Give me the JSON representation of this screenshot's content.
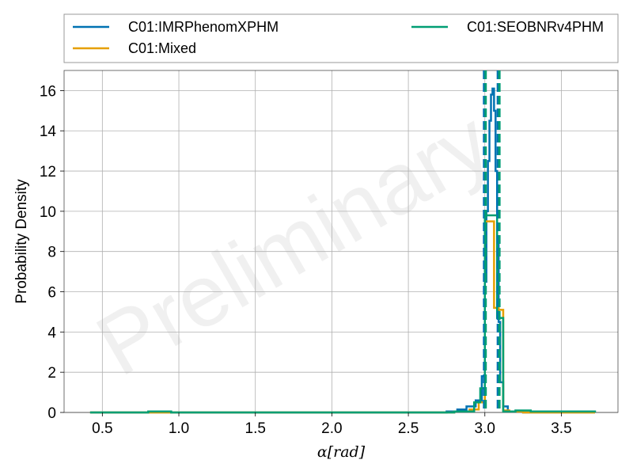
{
  "chart_data": {
    "type": "line",
    "title": "",
    "xlabel": "α[rad]",
    "ylabel": "Probability Density",
    "xlim": [
      0.25,
      3.87
    ],
    "ylim": [
      0,
      17
    ],
    "xticks": [
      0.5,
      1.0,
      1.5,
      2.0,
      2.5,
      3.0,
      3.5
    ],
    "xtick_labels": [
      "0.5",
      "1.0",
      "1.5",
      "2.0",
      "2.5",
      "3.0",
      "3.5"
    ],
    "yticks": [
      0,
      2,
      4,
      6,
      8,
      10,
      12,
      14,
      16
    ],
    "ytick_labels": [
      "0",
      "2",
      "4",
      "6",
      "8",
      "10",
      "12",
      "14",
      "16"
    ],
    "grid": true,
    "legend_position": "top",
    "watermark": "Preliminary",
    "series": [
      {
        "name": "C01:IMRPhenomXPHM",
        "color": "#0072b2",
        "style": "step",
        "x": [
          0.42,
          2.75,
          2.82,
          2.88,
          2.94,
          2.98,
          3.0,
          3.01,
          3.02,
          3.03,
          3.04,
          3.05,
          3.06,
          3.07,
          3.08,
          3.09,
          3.1,
          3.12,
          3.15,
          3.25,
          3.72
        ],
        "y": [
          0.0,
          0.05,
          0.15,
          0.3,
          0.6,
          1.8,
          6.5,
          10.0,
          12.5,
          14.5,
          15.8,
          16.1,
          15.0,
          12.0,
          8.5,
          4.5,
          1.5,
          0.3,
          0.05,
          0.0,
          0.0
        ]
      },
      {
        "name": "C01:Mixed",
        "color": "#e69f00",
        "style": "step",
        "x": [
          0.42,
          2.8,
          2.9,
          2.96,
          3.0,
          3.06,
          3.09,
          3.12,
          3.16,
          3.25,
          3.72
        ],
        "y": [
          0.0,
          0.05,
          0.15,
          0.5,
          9.5,
          5.2,
          5.1,
          0.1,
          0.05,
          0.0,
          0.0
        ]
      },
      {
        "name": "C01:SEOBNRv4PHM",
        "color": "#009e73",
        "style": "step",
        "x": [
          0.42,
          0.7,
          0.8,
          0.95,
          2.8,
          2.93,
          2.97,
          3.0,
          3.08,
          3.12,
          3.16,
          3.2,
          3.3,
          3.72
        ],
        "y": [
          0.0,
          0.0,
          0.05,
          0.0,
          0.05,
          0.5,
          1.2,
          9.8,
          4.7,
          0.05,
          0.05,
          0.1,
          0.05,
          0.0
        ]
      }
    ],
    "vlines": [
      {
        "x": 2.995,
        "color": "#0072b2",
        "style": "dashed"
      },
      {
        "x": 3.085,
        "color": "#0072b2",
        "style": "dashed"
      },
      {
        "x": 3.005,
        "color": "#009e73",
        "style": "dashed"
      },
      {
        "x": 3.095,
        "color": "#009e73",
        "style": "dashed"
      }
    ]
  }
}
